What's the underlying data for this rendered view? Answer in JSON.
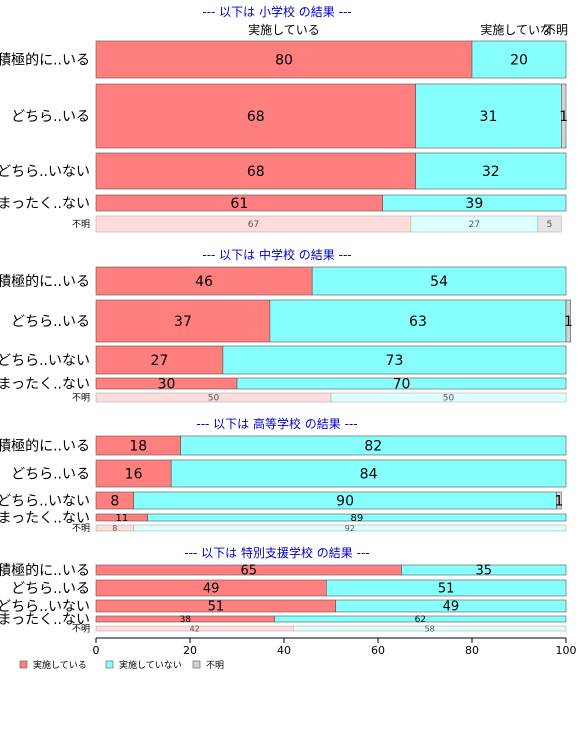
{
  "chart_data": [
    {
      "type": "bar",
      "title": "--- 以下は 小学校 の結果 ---",
      "column_headers": [
        "実施している",
        "実施していな..",
        "不明"
      ],
      "categories": [
        "積極的に..いる",
        "どちら..いる",
        "どちら..いない",
        "まったく..ない",
        "不明"
      ],
      "series": [
        {
          "name": "実施している",
          "values": [
            80,
            68,
            68,
            61,
            67
          ]
        },
        {
          "name": "実施していない",
          "values": [
            20,
            31,
            32,
            39,
            27
          ]
        },
        {
          "name": "不明",
          "values": [
            0,
            1,
            0,
            0,
            5
          ]
        }
      ]
    },
    {
      "type": "bar",
      "title": "--- 以下は 中学校 の結果 ---",
      "categories": [
        "積極的に..いる",
        "どちら..いる",
        "どちら..いない",
        "まったく..ない",
        "不明"
      ],
      "series": [
        {
          "name": "実施している",
          "values": [
            46,
            37,
            27,
            30,
            50
          ]
        },
        {
          "name": "実施していない",
          "values": [
            54,
            63,
            73,
            70,
            50
          ]
        },
        {
          "name": "不明",
          "values": [
            0,
            1,
            0,
            0,
            0
          ]
        }
      ]
    },
    {
      "type": "bar",
      "title": "--- 以下は 高等学校 の結果 ---",
      "categories": [
        "積極的に..いる",
        "どちら..いる",
        "どちら..いない",
        "まったく..ない",
        "不明"
      ],
      "series": [
        {
          "name": "実施している",
          "values": [
            18,
            16,
            8,
            11,
            8
          ]
        },
        {
          "name": "実施していない",
          "values": [
            82,
            84,
            90,
            89,
            92
          ]
        },
        {
          "name": "不明",
          "values": [
            0,
            0,
            1,
            0,
            0
          ]
        }
      ]
    },
    {
      "type": "bar",
      "title": "--- 以下は 特別支援学校 の結果 ---",
      "categories": [
        "積極的に..いる",
        "どちら..いる",
        "どちら..いない",
        "まったく..ない",
        "不明"
      ],
      "series": [
        {
          "name": "実施している",
          "values": [
            65,
            49,
            51,
            38,
            42
          ]
        },
        {
          "name": "実施していない",
          "values": [
            35,
            51,
            49,
            62,
            58
          ]
        },
        {
          "name": "不明",
          "values": [
            0,
            0,
            0,
            0,
            0
          ]
        }
      ]
    }
  ],
  "axis": {
    "xlim": [
      0,
      100
    ],
    "ticks": [
      "0",
      "20",
      "40",
      "60",
      "80",
      "100"
    ]
  },
  "legend": {
    "position": "bottom-left",
    "items": [
      {
        "label": "実施している",
        "color": "#ff7f7f"
      },
      {
        "label": "実施していない",
        "color": "#87ffff"
      },
      {
        "label": "不明",
        "color": "#d3d3d3"
      }
    ]
  },
  "colors": {
    "yes": "#ff7f7f",
    "no": "#87ffff",
    "unknown": "#d3d3d3",
    "yes_light": "#ffdcdc",
    "no_light": "#dcffff",
    "unknown_light": "#e6e6e6",
    "title": "#0000cc"
  }
}
